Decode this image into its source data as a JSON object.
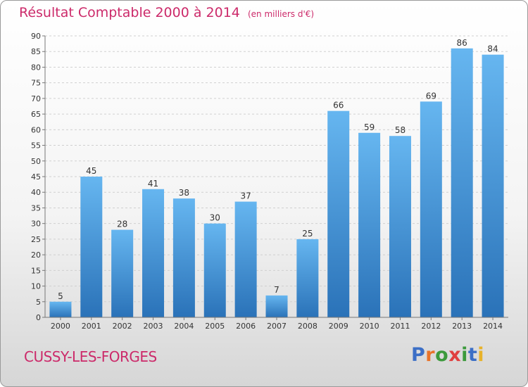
{
  "header": {
    "title": "Résultat Comptable 2000 à 2014",
    "unit": "(en milliers d'€)"
  },
  "footer": {
    "commune": "CUSSY-LES-FORGES",
    "logo_letters": [
      "P",
      "r",
      "o",
      "x",
      "i",
      "t",
      "i"
    ],
    "logo_colors": [
      "#3c6fc6",
      "#e8732a",
      "#3c9a3c",
      "#e04040",
      "#3c9a3c",
      "#3c6fc6",
      "#e8b22a"
    ]
  },
  "colors": {
    "bar": "#4a9de0",
    "bar_light": "#66b6f0",
    "bar_dark": "#2a72b8",
    "title": "#cc2a6a",
    "grid": "#d0d0d0"
  },
  "chart_data": {
    "type": "bar",
    "categories": [
      "2000",
      "2001",
      "2002",
      "2003",
      "2004",
      "2005",
      "2006",
      "2007",
      "2008",
      "2009",
      "2010",
      "2011",
      "2012",
      "2013",
      "2014"
    ],
    "values": [
      5,
      45,
      28,
      41,
      38,
      30,
      37,
      7,
      25,
      66,
      59,
      58,
      69,
      86,
      84
    ],
    "ylim": [
      0,
      90
    ],
    "yticks": [
      0,
      5,
      10,
      15,
      20,
      25,
      30,
      35,
      40,
      45,
      50,
      55,
      60,
      65,
      70,
      75,
      80,
      85,
      90
    ],
    "grid": true,
    "legend": "none"
  }
}
